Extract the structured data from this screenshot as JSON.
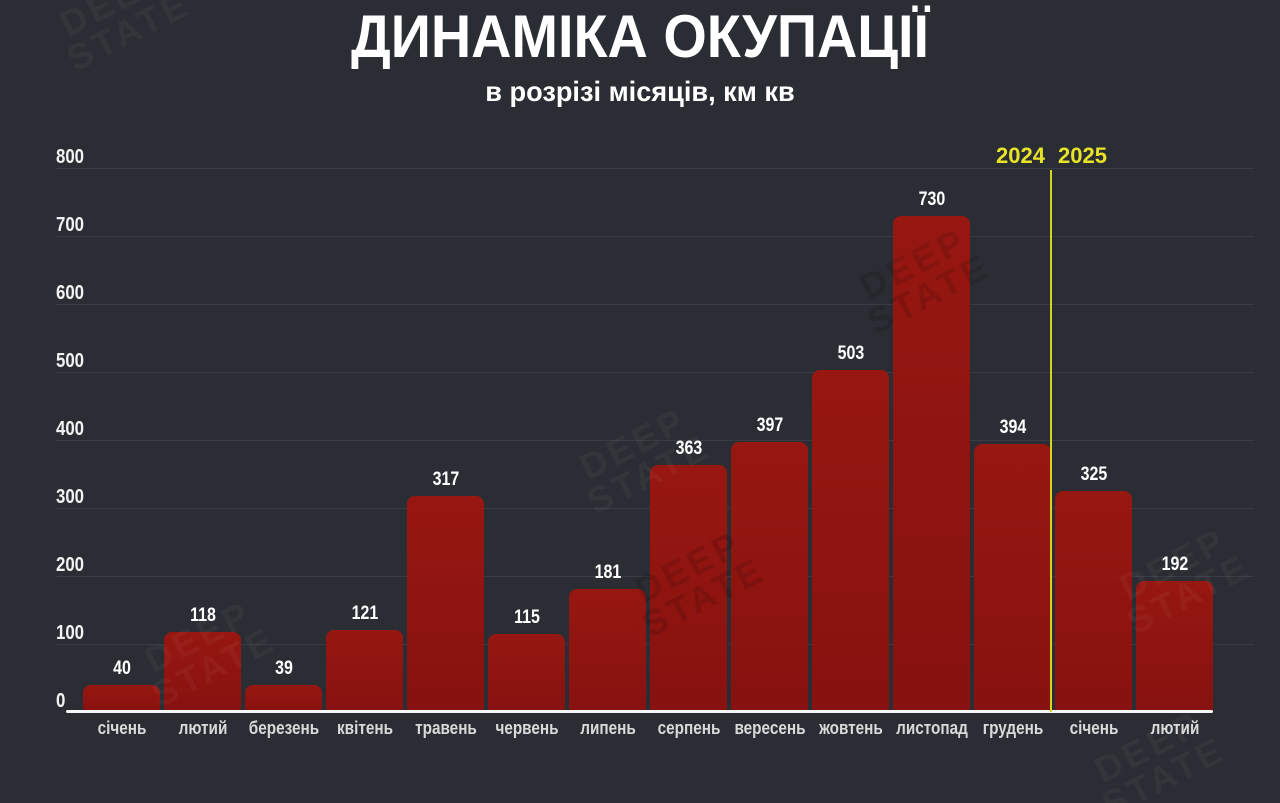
{
  "chart_data": {
    "type": "bar",
    "title": "ДИНАМІКА ОКУПАЦІЇ",
    "subtitle": "в розрізі місяців, км кв",
    "categories": [
      "січень",
      "лютий",
      "березень",
      "квітень",
      "травень",
      "червень",
      "липень",
      "серпень",
      "вересень",
      "жовтень",
      "листопад",
      "грудень",
      "січень",
      "лютий"
    ],
    "values": [
      40,
      118,
      39,
      121,
      317,
      115,
      181,
      363,
      397,
      503,
      730,
      394,
      325,
      192
    ],
    "xlabel": "",
    "ylabel": "",
    "ylim": [
      0,
      800
    ],
    "yticks": [
      0,
      100,
      200,
      300,
      400,
      500,
      600,
      700,
      800
    ],
    "grid": true,
    "legend": "none",
    "bar_color": "#8c1310",
    "background_color": "#2b2d34",
    "axis_line_color": "#f7f7f7",
    "value_label_color": "#ffffff",
    "year_divider": {
      "after_index": 11,
      "left_label": "2024",
      "right_label": "2025",
      "color": "#e9e327"
    }
  },
  "watermark": {
    "text": "DEEP STATE"
  }
}
